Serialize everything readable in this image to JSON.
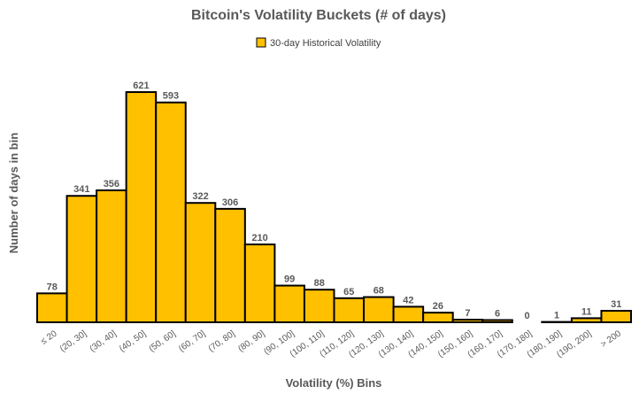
{
  "chart_data": {
    "type": "bar",
    "title": "Bitcoin's Volatility Buckets (# of days)",
    "xlabel": "Volatility (%) Bins",
    "ylabel": "Number of days in bin",
    "legend": {
      "position": "top",
      "entries": [
        "30-day Historical Volatility"
      ]
    },
    "grid": false,
    "categories": [
      "≤ 20",
      "(20, 30]",
      "(30, 40]",
      "(40, 50]",
      "(50, 60]",
      "(60, 70]",
      "(70, 80]",
      "(80, 90]",
      "(90, 100]",
      "(100, 110]",
      "(110, 120]",
      "(120, 130]",
      "(130, 140]",
      "(140, 150]",
      "(150, 160]",
      "(160, 170]",
      "(170, 180]",
      "(180, 190]",
      "(190, 200]",
      "> 200"
    ],
    "series": [
      {
        "name": "30-day Historical Volatility",
        "color": "#FFC000",
        "values": [
          78,
          341,
          356,
          621,
          593,
          322,
          306,
          210,
          99,
          88,
          65,
          68,
          42,
          26,
          7,
          6,
          0,
          1,
          11,
          31
        ]
      }
    ],
    "ylim": [
      0,
      621
    ]
  }
}
